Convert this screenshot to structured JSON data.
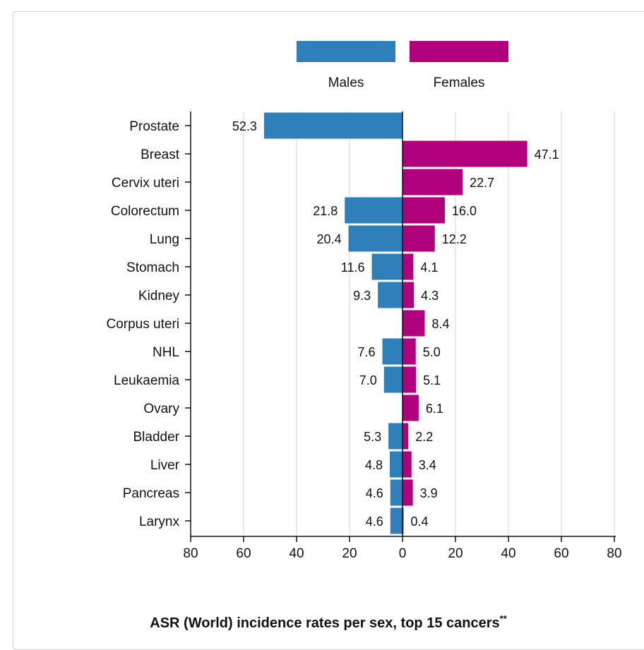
{
  "chart_data": {
    "type": "bar",
    "orientation": "horizontal-butterfly",
    "title": "ASR (World) incidence rates per sex, top 15 cancers",
    "title_suffix": "**",
    "categories": [
      "Prostate",
      "Breast",
      "Cervix uteri",
      "Colorectum",
      "Lung",
      "Stomach",
      "Kidney",
      "Corpus uteri",
      "NHL",
      "Leukaemia",
      "Ovary",
      "Bladder",
      "Liver",
      "Pancreas",
      "Larynx"
    ],
    "series": [
      {
        "name": "Males",
        "color": "#2f7fba",
        "side": "left",
        "values": [
          52.3,
          null,
          null,
          21.8,
          20.4,
          11.6,
          9.3,
          null,
          7.6,
          7.0,
          null,
          5.3,
          4.8,
          4.6,
          4.6
        ],
        "labels": [
          "52.3",
          "",
          "",
          "21.8",
          "20.4",
          "11.6",
          "9.3",
          "",
          "7.6",
          "7.0",
          "",
          "5.3",
          "4.8",
          "4.6",
          "4.6"
        ]
      },
      {
        "name": "Females",
        "color": "#b0007e",
        "side": "right",
        "values": [
          null,
          47.1,
          22.7,
          16.0,
          12.2,
          4.1,
          4.3,
          8.4,
          5.0,
          5.1,
          6.1,
          2.2,
          3.4,
          3.9,
          0.4
        ],
        "labels": [
          "",
          "47.1",
          "22.7",
          "16.0",
          "12.2",
          "4.1",
          "4.3",
          "8.4",
          "5.0",
          "5.1",
          "6.1",
          "2.2",
          "3.4",
          "3.9",
          "0.4"
        ]
      }
    ],
    "xlim": [
      -80,
      80
    ],
    "xticks": [
      -80,
      -60,
      -40,
      -20,
      0,
      20,
      40,
      60,
      80
    ],
    "xtick_labels": [
      "80",
      "60",
      "40",
      "20",
      "0",
      "20",
      "40",
      "60",
      "80"
    ],
    "grid": true,
    "legend_position": "top"
  },
  "colors": {
    "males": "#2f7fba",
    "females": "#b0007e",
    "grid": "#d4d4d4",
    "axis": "#111111"
  }
}
